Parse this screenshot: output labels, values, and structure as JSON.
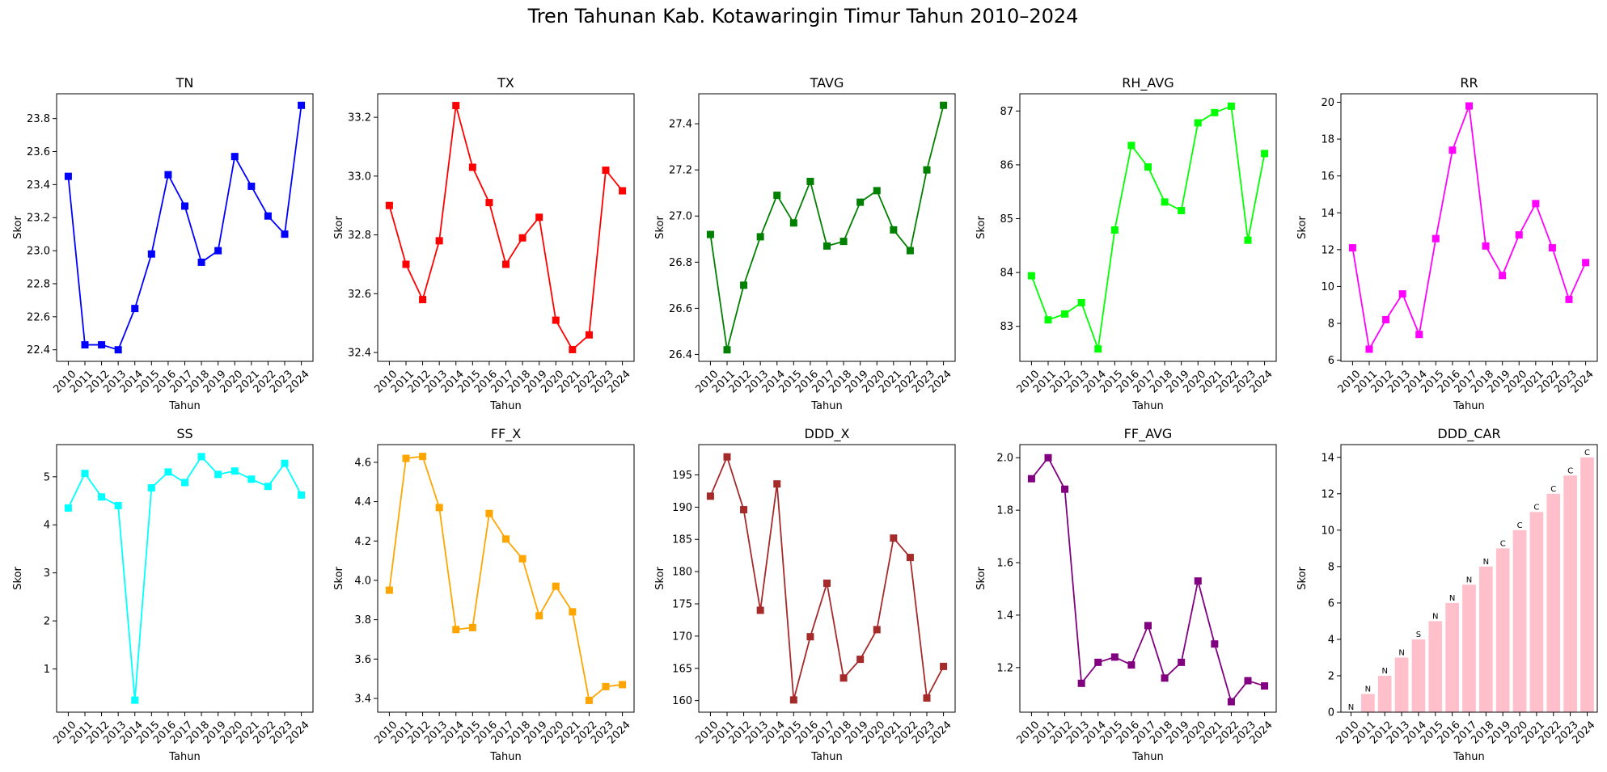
{
  "suptitle": "Tren Tahunan Kab. Kotawaringin Timur Tahun 2010–2024",
  "chart_data": [
    {
      "type": "line",
      "title": "TN",
      "xlabel": "Tahun",
      "ylabel": "Skor",
      "color": "#0000ff",
      "categories": [
        "2010",
        "2011",
        "2012",
        "2013",
        "2014",
        "2015",
        "2016",
        "2017",
        "2018",
        "2019",
        "2020",
        "2021",
        "2022",
        "2023",
        "2024"
      ],
      "values": [
        23.45,
        22.43,
        22.43,
        22.4,
        22.65,
        22.98,
        23.46,
        23.27,
        22.93,
        23.0,
        23.57,
        23.39,
        23.21,
        23.1,
        23.88
      ],
      "ylim": [
        22.33,
        23.95
      ],
      "yticks": [
        22.4,
        22.6,
        22.8,
        23.0,
        23.2,
        23.4,
        23.6,
        23.8
      ],
      "tick_decimals": 1,
      "grid": false
    },
    {
      "type": "line",
      "title": "TX",
      "xlabel": "Tahun",
      "ylabel": "Skor",
      "color": "#ff0000",
      "categories": [
        "2010",
        "2011",
        "2012",
        "2013",
        "2014",
        "2015",
        "2016",
        "2017",
        "2018",
        "2019",
        "2020",
        "2021",
        "2022",
        "2023",
        "2024"
      ],
      "values": [
        32.9,
        32.7,
        32.58,
        32.78,
        33.24,
        33.03,
        32.91,
        32.7,
        32.79,
        32.86,
        32.51,
        32.41,
        32.46,
        33.02,
        32.95
      ],
      "ylim": [
        32.37,
        33.28
      ],
      "yticks": [
        32.4,
        32.6,
        32.8,
        33.0,
        33.2
      ],
      "tick_decimals": 1,
      "grid": false
    },
    {
      "type": "line",
      "title": "TAVG",
      "xlabel": "Tahun",
      "ylabel": "Skor",
      "color": "#008000",
      "categories": [
        "2010",
        "2011",
        "2012",
        "2013",
        "2014",
        "2015",
        "2016",
        "2017",
        "2018",
        "2019",
        "2020",
        "2021",
        "2022",
        "2023",
        "2024"
      ],
      "values": [
        26.92,
        26.42,
        26.7,
        26.91,
        27.09,
        26.97,
        27.15,
        26.87,
        26.89,
        27.06,
        27.11,
        26.94,
        26.85,
        27.2,
        27.48
      ],
      "ylim": [
        26.37,
        27.53
      ],
      "yticks": [
        26.4,
        26.6,
        26.8,
        27.0,
        27.2,
        27.4
      ],
      "tick_decimals": 1,
      "grid": false
    },
    {
      "type": "line",
      "title": "RH_AVG",
      "xlabel": "Tahun",
      "ylabel": "Skor",
      "color": "#00ff00",
      "categories": [
        "2010",
        "2011",
        "2012",
        "2013",
        "2014",
        "2015",
        "2016",
        "2017",
        "2018",
        "2019",
        "2020",
        "2021",
        "2022",
        "2023",
        "2024"
      ],
      "values": [
        83.94,
        83.12,
        83.23,
        83.44,
        82.58,
        84.79,
        86.36,
        85.96,
        85.31,
        85.15,
        86.78,
        86.97,
        87.09,
        84.6,
        86.21
      ],
      "ylim": [
        82.35,
        87.32
      ],
      "yticks": [
        83,
        84,
        85,
        86,
        87
      ],
      "tick_decimals": 0,
      "grid": false
    },
    {
      "type": "line",
      "title": "RR",
      "xlabel": "Tahun",
      "ylabel": "Skor",
      "color": "#ff00ff",
      "categories": [
        "2010",
        "2011",
        "2012",
        "2013",
        "2014",
        "2015",
        "2016",
        "2017",
        "2018",
        "2019",
        "2020",
        "2021",
        "2022",
        "2023",
        "2024"
      ],
      "values": [
        12.1,
        6.6,
        8.2,
        9.6,
        7.4,
        12.6,
        17.4,
        19.8,
        12.2,
        10.6,
        12.8,
        14.5,
        12.1,
        9.3,
        11.3
      ],
      "ylim": [
        5.94,
        20.46
      ],
      "yticks": [
        6,
        8,
        10,
        12,
        14,
        16,
        18,
        20
      ],
      "tick_decimals": 0,
      "grid": false
    },
    {
      "type": "line",
      "title": "SS",
      "xlabel": "Tahun",
      "ylabel": "Skor",
      "color": "#00ffff",
      "categories": [
        "2010",
        "2011",
        "2012",
        "2013",
        "2014",
        "2015",
        "2016",
        "2017",
        "2018",
        "2019",
        "2020",
        "2021",
        "2022",
        "2023",
        "2024"
      ],
      "values": [
        4.35,
        5.07,
        4.58,
        4.4,
        0.35,
        4.77,
        5.1,
        4.88,
        5.42,
        5.05,
        5.12,
        4.95,
        4.8,
        5.28,
        4.62
      ],
      "ylim": [
        0.1,
        5.67
      ],
      "yticks": [
        1,
        2,
        3,
        4,
        5
      ],
      "tick_decimals": 0,
      "grid": false
    },
    {
      "type": "line",
      "title": "FF_X",
      "xlabel": "Tahun",
      "ylabel": "Skor",
      "color": "#ffa500",
      "categories": [
        "2010",
        "2011",
        "2012",
        "2013",
        "2014",
        "2015",
        "2016",
        "2017",
        "2018",
        "2019",
        "2020",
        "2021",
        "2022",
        "2023",
        "2024"
      ],
      "values": [
        3.95,
        4.62,
        4.63,
        4.37,
        3.75,
        3.76,
        4.34,
        4.21,
        4.11,
        3.82,
        3.97,
        3.84,
        3.39,
        3.46,
        3.47
      ],
      "ylim": [
        3.33,
        4.69
      ],
      "yticks": [
        3.4,
        3.6,
        3.8,
        4.0,
        4.2,
        4.4,
        4.6
      ],
      "tick_decimals": 1,
      "grid": false
    },
    {
      "type": "line",
      "title": "DDD_X",
      "xlabel": "Tahun",
      "ylabel": "Skor",
      "color": "#a52a2a",
      "categories": [
        "2010",
        "2011",
        "2012",
        "2013",
        "2014",
        "2015",
        "2016",
        "2017",
        "2018",
        "2019",
        "2020",
        "2021",
        "2022",
        "2023",
        "2024"
      ],
      "values": [
        191.7,
        197.8,
        189.6,
        174.0,
        193.6,
        160.1,
        169.9,
        178.2,
        163.5,
        166.4,
        171.0,
        185.2,
        182.2,
        160.4,
        165.3
      ],
      "ylim": [
        158.2,
        199.7
      ],
      "yticks": [
        160,
        165,
        170,
        175,
        180,
        185,
        190,
        195
      ],
      "tick_decimals": 0,
      "grid": false
    },
    {
      "type": "line",
      "title": "FF_AVG",
      "xlabel": "Tahun",
      "ylabel": "Skor",
      "color": "#800080",
      "categories": [
        "2010",
        "2011",
        "2012",
        "2013",
        "2014",
        "2015",
        "2016",
        "2017",
        "2018",
        "2019",
        "2020",
        "2021",
        "2022",
        "2023",
        "2024"
      ],
      "values": [
        1.92,
        2.0,
        1.88,
        1.14,
        1.22,
        1.24,
        1.21,
        1.36,
        1.16,
        1.22,
        1.53,
        1.29,
        1.07,
        1.15,
        1.13
      ],
      "ylim": [
        1.03,
        2.05
      ],
      "yticks": [
        1.2,
        1.4,
        1.6,
        1.8,
        2.0
      ],
      "tick_decimals": 1,
      "grid": false
    },
    {
      "type": "bar",
      "title": "DDD_CAR",
      "xlabel": "Tahun",
      "ylabel": "Skor",
      "color": "#ffc0cb",
      "categories": [
        "2010",
        "2011",
        "2012",
        "2013",
        "2014",
        "2015",
        "2016",
        "2017",
        "2018",
        "2019",
        "2020",
        "2021",
        "2022",
        "2023",
        "2024"
      ],
      "values": [
        0,
        1,
        2,
        3,
        4,
        5,
        6,
        7,
        8,
        9,
        10,
        11,
        12,
        13,
        14
      ],
      "bar_labels": [
        "N",
        "N",
        "N",
        "N",
        "S",
        "N",
        "N",
        "N",
        "N",
        "C",
        "C",
        "C",
        "C",
        "C",
        "C"
      ],
      "ylim": [
        0,
        14.7
      ],
      "yticks": [
        0,
        2,
        4,
        6,
        8,
        10,
        12,
        14
      ],
      "tick_decimals": 0,
      "grid": false
    }
  ]
}
